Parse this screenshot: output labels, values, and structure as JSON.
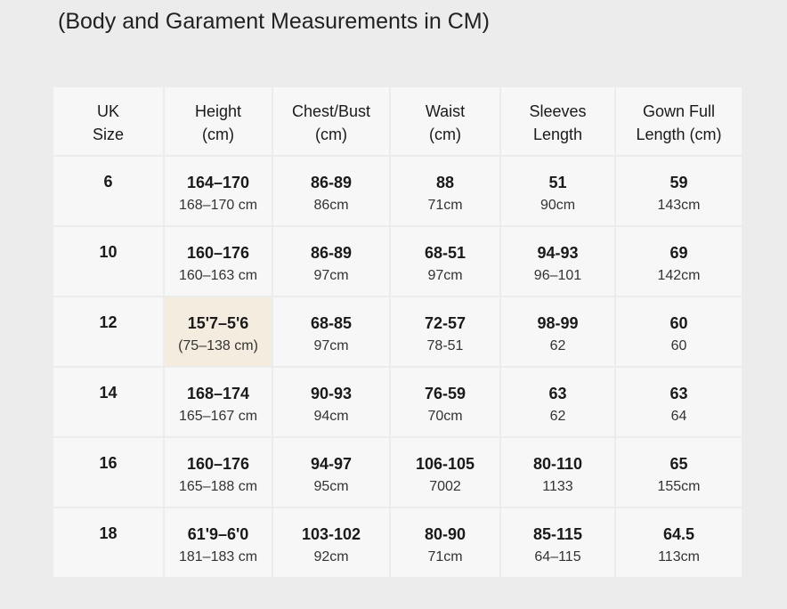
{
  "title": "(Body and Garament Measurements in CM)",
  "table": {
    "headers": [
      "UK\nSize",
      "Height\n(cm)",
      "Chest/Bust\n(cm)",
      "Waist\n(cm)",
      "Sleeves\nLength",
      "Gown Full\nLength (cm)"
    ],
    "rows": [
      {
        "size": "6",
        "cells": [
          {
            "main": "164–170",
            "sub": "168–170 cm"
          },
          {
            "main": "86-89",
            "sub": "86cm"
          },
          {
            "main": "88",
            "sub": "71cm"
          },
          {
            "main": "51",
            "sub": "90cm"
          },
          {
            "main": "59",
            "sub": "143cm"
          }
        ]
      },
      {
        "size": "10",
        "cells": [
          {
            "main": "160–176",
            "sub": "160–163 cm"
          },
          {
            "main": "86-89",
            "sub": "97cm"
          },
          {
            "main": "68-51",
            "sub": "97cm"
          },
          {
            "main": "94-93",
            "sub": "96–101"
          },
          {
            "main": "69",
            "sub": "142cm"
          }
        ]
      },
      {
        "size": "12",
        "cells": [
          {
            "main": "15'7–5'6",
            "sub": "(75–138 cm)"
          },
          {
            "main": "68-85",
            "sub": "97cm"
          },
          {
            "main": "72-57",
            "sub": "78-51"
          },
          {
            "main": "98-99",
            "sub": "62"
          },
          {
            "main": "60",
            "sub": "60"
          }
        ]
      },
      {
        "size": "14",
        "cells": [
          {
            "main": "168–174",
            "sub": "165–167 cm"
          },
          {
            "main": "90-93",
            "sub": "94cm"
          },
          {
            "main": "76-59",
            "sub": "70cm"
          },
          {
            "main": "63",
            "sub": "62"
          },
          {
            "main": "63",
            "sub": "64"
          }
        ]
      },
      {
        "size": "16",
        "cells": [
          {
            "main": "160–176",
            "sub": "165–188 cm"
          },
          {
            "main": "94-97",
            "sub": "95cm"
          },
          {
            "main": "106-105",
            "sub": "7002"
          },
          {
            "main": "80-110",
            "sub": "1133"
          },
          {
            "main": "65",
            "sub": "155cm"
          }
        ]
      },
      {
        "size": "18",
        "cells": [
          {
            "main": "61'9–6'0",
            "sub": "181–183 cm"
          },
          {
            "main": "103-102",
            "sub": "92cm"
          },
          {
            "main": "80-90",
            "sub": "71cm"
          },
          {
            "main": "85-115",
            "sub": "64–115"
          },
          {
            "main": "64.5",
            "sub": "113cm"
          }
        ]
      }
    ]
  }
}
